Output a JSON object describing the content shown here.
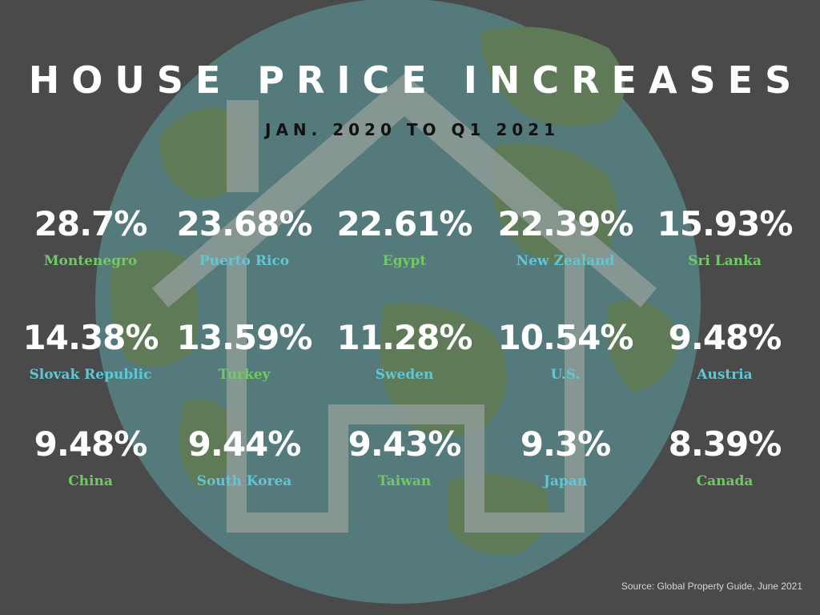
{
  "header": {
    "title": "HOUSE PRICE INCREASES",
    "subtitle": "JAN. 2020 TO Q1 2021"
  },
  "colors": {
    "background": "#4a4a4a",
    "ocean": "#557a7c",
    "land": "#5e7a57",
    "house": "#8f9b96",
    "green_label": "#72c766",
    "blue_label": "#5fc7d3",
    "value_text": "#ffffff"
  },
  "stats": [
    {
      "value": "28.7%",
      "country": "Montenegro",
      "color": "#72c766"
    },
    {
      "value": "23.68%",
      "country": "Puerto Rico",
      "color": "#5fc7d3"
    },
    {
      "value": "22.61%",
      "country": "Egypt",
      "color": "#72c766"
    },
    {
      "value": "22.39%",
      "country": "New Zealand",
      "color": "#5fc7d3"
    },
    {
      "value": "15.93%",
      "country": "Sri Lanka",
      "color": "#72c766"
    },
    {
      "value": "14.38%",
      "country": "Slovak Republic",
      "color": "#5fc7d3"
    },
    {
      "value": "13.59%",
      "country": "Turkey",
      "color": "#72c766"
    },
    {
      "value": "11.28%",
      "country": "Sweden",
      "color": "#5fc7d3"
    },
    {
      "value": "10.54%",
      "country": "U.S.",
      "color": "#5fc7d3"
    },
    {
      "value": "9.48%",
      "country": "Austria",
      "color": "#5fc7d3"
    },
    {
      "value": "9.48%",
      "country": "China",
      "color": "#72c766"
    },
    {
      "value": "9.44%",
      "country": "South Korea",
      "color": "#5fc7d3"
    },
    {
      "value": "9.43%",
      "country": "Taiwan",
      "color": "#72c766"
    },
    {
      "value": "9.3%",
      "country": "Japan",
      "color": "#5fc7d3"
    },
    {
      "value": "8.39%",
      "country": "Canada",
      "color": "#72c766"
    }
  ],
  "footer": {
    "source": "Source: Global Property Guide, June 2021"
  }
}
